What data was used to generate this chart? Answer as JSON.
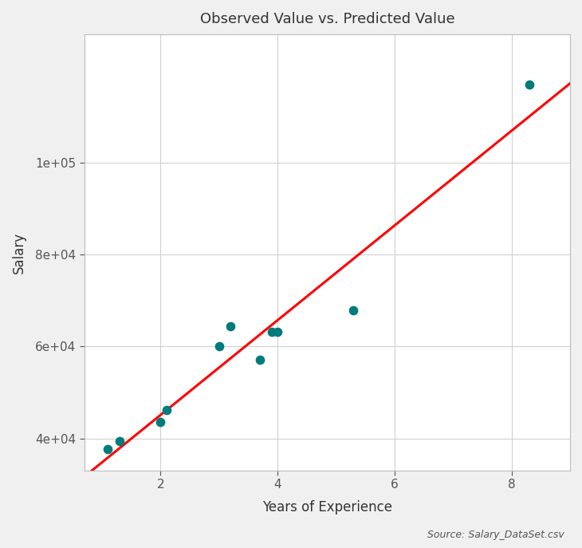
{
  "title": "Observed Value vs. Predicted Value",
  "xlabel": "Years of Experience",
  "ylabel": "Salary",
  "source_text": "Source: Salary_DataSet.csv",
  "scatter_x": [
    1.1,
    1.3,
    2.0,
    2.1,
    3.0,
    3.2,
    3.7,
    3.9,
    4.0,
    5.3,
    8.3
  ],
  "scatter_y": [
    37731,
    39343,
    43525,
    46205,
    60150,
    64445,
    57189,
    63218,
    63282,
    67938,
    116969
  ],
  "scatter_color": "#007b7b",
  "line_color": "#FF0000",
  "background_color": "#f0f0f0",
  "plot_bg_color": "#ffffff",
  "grid_color": "#d0d0d0",
  "title_fontsize": 13,
  "label_fontsize": 12,
  "tick_fontsize": 11,
  "source_fontsize": 9,
  "scatter_size": 55,
  "yticks": [
    40000,
    60000,
    80000,
    100000
  ],
  "ylim": [
    33000,
    128000
  ],
  "xlim": [
    0.7,
    9.0
  ],
  "xticks": [
    2,
    4,
    6,
    8
  ],
  "line_x_start": 0.7,
  "line_x_end": 9.0
}
